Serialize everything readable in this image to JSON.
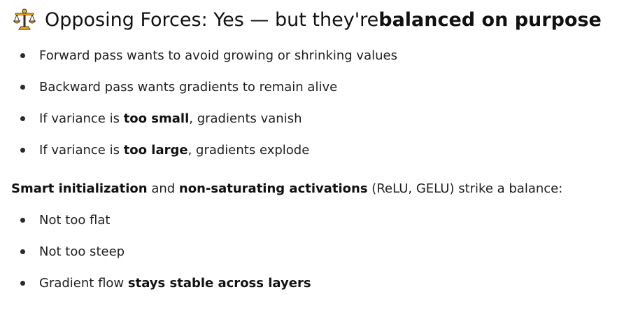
{
  "heading": {
    "icon": "balance-scale-icon",
    "prefix": "Opposing Forces: Yes — but they're ",
    "emphasis": "balanced on purpose"
  },
  "first_list": [
    {
      "segments": [
        {
          "text": "Forward pass wants to avoid growing or shrinking values",
          "bold": false
        }
      ]
    },
    {
      "segments": [
        {
          "text": "Backward pass wants gradients to remain alive",
          "bold": false
        }
      ]
    },
    {
      "segments": [
        {
          "text": "If variance is ",
          "bold": false
        },
        {
          "text": "too small",
          "bold": true
        },
        {
          "text": ", gradients vanish",
          "bold": false
        }
      ]
    },
    {
      "segments": [
        {
          "text": "If variance is ",
          "bold": false
        },
        {
          "text": "too large",
          "bold": true
        },
        {
          "text": ", gradients explode",
          "bold": false
        }
      ]
    }
  ],
  "paragraph": {
    "segments": [
      {
        "text": "Smart initialization",
        "bold": true
      },
      {
        "text": " and ",
        "bold": false
      },
      {
        "text": "non-saturating activations",
        "bold": true
      },
      {
        "text": " (ReLU, GELU) strike a balance:",
        "bold": false
      }
    ]
  },
  "second_list": [
    {
      "segments": [
        {
          "text": "Not too flat",
          "bold": false
        }
      ]
    },
    {
      "segments": [
        {
          "text": "Not too steep",
          "bold": false
        }
      ]
    },
    {
      "segments": [
        {
          "text": "Gradient flow ",
          "bold": false
        },
        {
          "text": "stays stable across layers",
          "bold": true
        }
      ]
    }
  ],
  "colors": {
    "text": "#1f1f1f",
    "icon_gold": "#f2b01e",
    "icon_dark": "#3b2a12"
  }
}
